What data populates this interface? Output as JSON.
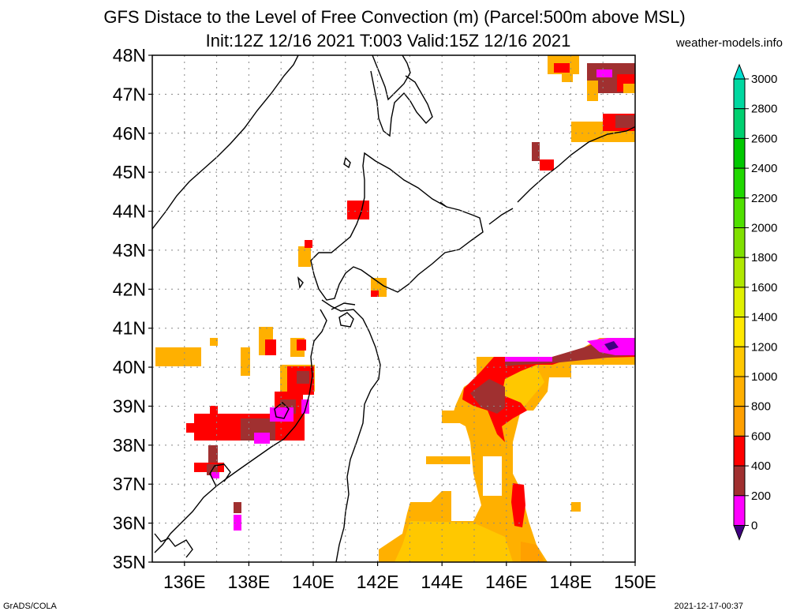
{
  "title": {
    "line1": "GFS Distace to the Level of Free Convection (m) (Parcel:500m above MSL)",
    "line2": "Init:12Z 12/16 2021 T:003 Valid:15Z 12/16 2021"
  },
  "credit": "weather-models.info",
  "footer": {
    "left": "GrADS/COLA",
    "right": "2021-12-17-00:37"
  },
  "map": {
    "lon_range": [
      135,
      150
    ],
    "lat_range": [
      35,
      48
    ],
    "lat_labels": [
      "48N",
      "47N",
      "46N",
      "45N",
      "44N",
      "43N",
      "42N",
      "41N",
      "40N",
      "39N",
      "38N",
      "37N",
      "36N",
      "35N"
    ],
    "lon_labels": [
      "136E",
      "138E",
      "140E",
      "142E",
      "144E",
      "146E",
      "148E",
      "150E"
    ],
    "grid": true
  },
  "colorbar": {
    "unit": "m",
    "labels": [
      "3000",
      "2800",
      "2600",
      "2400",
      "2200",
      "2000",
      "1800",
      "1600",
      "1400",
      "1200",
      "1000",
      "800",
      "600",
      "400",
      "200",
      "0"
    ],
    "colors": [
      "#00e0d0",
      "#00d8a0",
      "#00d070",
      "#00c800",
      "#20d800",
      "#50e000",
      "#80e000",
      "#b0e800",
      "#e0f000",
      "#ffe800",
      "#ffc800",
      "#ffb000",
      "#ffa000",
      "#ff0000",
      "#a03030",
      "#ff00ff",
      "#400080"
    ]
  },
  "palette": {
    "land_border": "#000000",
    "c600_800": "#ffa000",
    "c800_1000": "#ffb000",
    "c1000_1200": "#ffc800",
    "c400_600": "#ff0000",
    "c200_400": "#a03030",
    "c0_200": "#ff00ff",
    "c_below0": "#400080"
  }
}
